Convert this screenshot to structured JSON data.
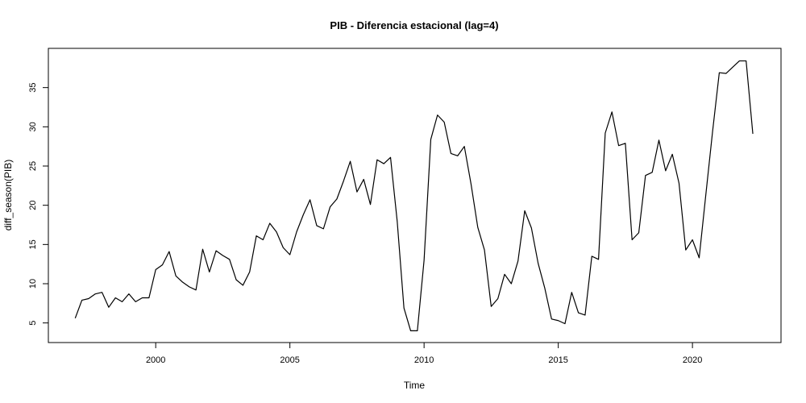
{
  "chart_data": {
    "type": "line",
    "title": "PIB - Diferencia estacional (lag=4)",
    "xlabel": "Time",
    "ylabel": "diff_season(PIB)",
    "x_start": 1997,
    "x_step": 0.25,
    "xlim": [
      1996.0,
      2023.3
    ],
    "ylim": [
      2.5,
      40.0
    ],
    "x_ticks": [
      2000,
      2005,
      2010,
      2015,
      2020
    ],
    "y_ticks": [
      5,
      10,
      15,
      20,
      25,
      30,
      35
    ],
    "grid": false,
    "line_color": "#000000",
    "series": [
      {
        "values": [
          5.6,
          7.9,
          8.1,
          8.7,
          8.9,
          7.0,
          8.2,
          7.7,
          8.7,
          7.7,
          8.2,
          8.2,
          11.8,
          12.4,
          14.1,
          11.0,
          10.2,
          9.6,
          9.2,
          14.4,
          11.5,
          14.2,
          13.6,
          13.1,
          10.5,
          9.8,
          11.5,
          16.1,
          15.6,
          17.7,
          16.6,
          14.6,
          13.7,
          16.6,
          18.8,
          20.7,
          17.4,
          17.0,
          19.8,
          20.8,
          23.1,
          25.6,
          21.7,
          23.3,
          20.1,
          25.8,
          25.3,
          26.1,
          17.9,
          6.9,
          4.0,
          4.0,
          13.0,
          28.4,
          31.5,
          30.6,
          26.6,
          26.3,
          27.5,
          22.7,
          17.2,
          14.3,
          7.1,
          8.1,
          11.2,
          10.0,
          12.9,
          19.3,
          17.1,
          12.6,
          9.4,
          5.5,
          5.3,
          4.9,
          8.9,
          6.3,
          6.0,
          13.5,
          13.1,
          29.2,
          31.9,
          27.6,
          27.9,
          15.6,
          16.5,
          23.8,
          24.2,
          28.3,
          24.4,
          26.5,
          22.8,
          14.3,
          15.6,
          13.3,
          21.4,
          29.4,
          36.9,
          36.8,
          37.6,
          38.4,
          38.4,
          29.1
        ]
      }
    ]
  }
}
